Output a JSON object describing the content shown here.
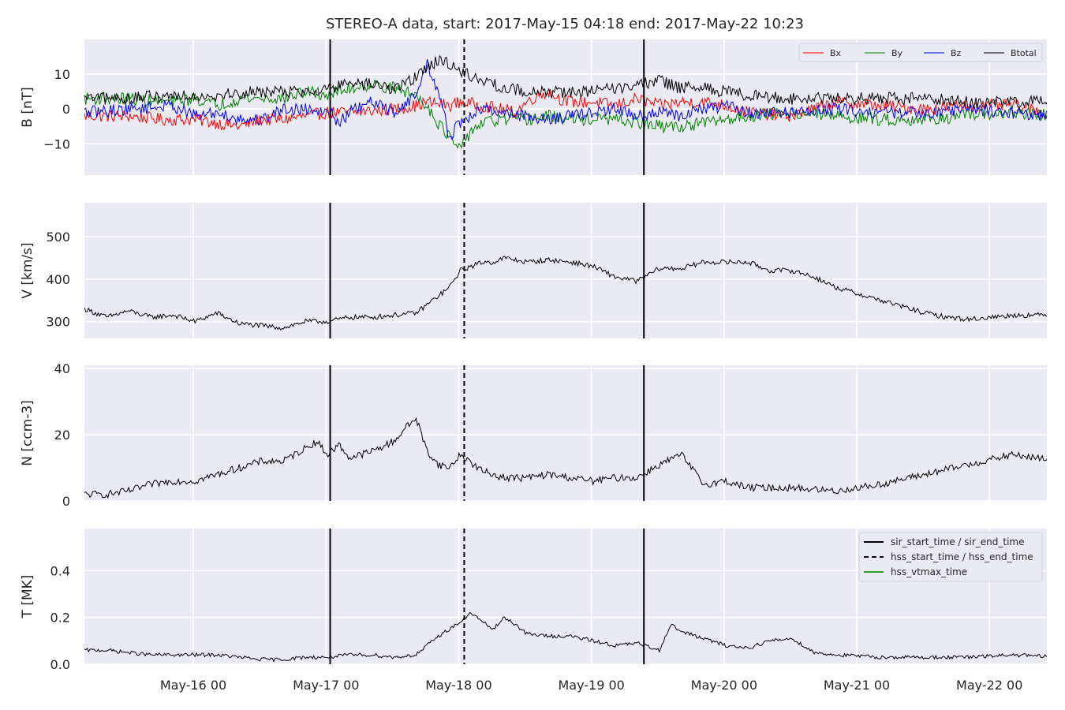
{
  "chart_data": {
    "type": "line",
    "title": "STEREO-A data, start: 2017-May-15 04:18  end: 2017-May-22 10:23",
    "x_range": [
      "2017-05-15 04:18",
      "2017-05-22 10:23"
    ],
    "x_tick_labels": [
      "May-16 00",
      "May-17 00",
      "May-18 00",
      "May-19 00",
      "May-20 00",
      "May-21 00",
      "May-22 00"
    ],
    "grid": true,
    "event_markers": [
      {
        "label": "sir_start_time / sir_end_time",
        "style": "solid",
        "color": "#000000",
        "times": [
          "2017-05-17 00:45",
          "2017-05-19 09:30"
        ]
      },
      {
        "label": "hss_start_time / hss_end_time",
        "style": "dashed",
        "color": "#000000",
        "times": [
          "2017-05-18 01:00"
        ]
      },
      {
        "label": "hss_vtmax_time",
        "style": "solid",
        "color": "#2ca02c",
        "times": []
      }
    ],
    "panels": [
      {
        "id": "B",
        "ylabel": "B [nT]",
        "ylim": [
          -19,
          20
        ],
        "yticks": [
          -10,
          0,
          10
        ],
        "ytick_labels": [
          "−10",
          "0",
          "10"
        ],
        "legend_position": "top-right",
        "series": [
          {
            "name": "Bx",
            "color": "#ff0000",
            "x": [
              0,
              8,
              14,
              20,
              24,
              28,
              32,
              36,
              40,
              44,
              48,
              56,
              60,
              62,
              66,
              68,
              72,
              78,
              80,
              82,
              84,
              86,
              88,
              92,
              96,
              100,
              104,
              108,
              112,
              116,
              120,
              128,
              136,
              144,
              152,
              160,
              168,
              176
            ],
            "y": [
              -2,
              -2,
              -3,
              -3,
              -4,
              -5,
              -3,
              -3,
              -2,
              -1,
              -1,
              0,
              1,
              2,
              1,
              2,
              1,
              -1,
              2,
              4,
              5,
              3,
              2,
              2,
              1,
              3,
              1,
              2,
              2,
              1,
              -1,
              -2,
              2,
              1,
              0,
              1,
              1,
              -2
            ]
          },
          {
            "name": "By",
            "color": "#008000",
            "x": [
              0,
              8,
              16,
              20,
              24,
              28,
              32,
              36,
              40,
              44,
              48,
              52,
              56,
              60,
              62,
              64,
              66,
              68,
              70,
              72,
              76,
              80,
              84,
              88,
              92,
              96,
              100,
              104,
              108,
              112,
              116,
              120,
              128,
              136,
              144,
              152,
              160,
              168,
              176
            ],
            "y": [
              3,
              3,
              2,
              3,
              1,
              3,
              3,
              3,
              5,
              4,
              6,
              7,
              6,
              4,
              1,
              -4,
              -8,
              -12,
              -6,
              -4,
              -3,
              -3,
              -2,
              -3,
              -3,
              -3,
              -4,
              -5,
              -5,
              -4,
              -3,
              -2,
              -1,
              -2,
              -3,
              -3,
              -2,
              -1,
              -2
            ]
          },
          {
            "name": "Bz",
            "color": "#0000ff",
            "x": [
              0,
              8,
              16,
              20,
              24,
              28,
              32,
              36,
              40,
              44,
              46,
              48,
              52,
              56,
              60,
              62,
              64,
              66,
              68,
              70,
              72,
              76,
              80,
              84,
              88,
              92,
              96,
              100,
              104,
              108,
              112,
              116,
              120,
              128,
              136,
              144,
              152,
              160,
              168,
              176
            ],
            "y": [
              -1,
              0,
              1,
              -2,
              -1,
              -3,
              -3,
              0,
              0,
              0,
              -4,
              -1,
              2,
              -1,
              4,
              13,
              5,
              -8,
              -4,
              -2,
              0,
              -1,
              -2,
              -3,
              -2,
              -1,
              0,
              -2,
              -1,
              -2,
              0,
              1,
              -1,
              -1,
              0,
              -1,
              -1,
              0,
              -1,
              -2
            ]
          },
          {
            "name": "Btotal",
            "color": "#000000",
            "x": [
              0,
              8,
              16,
              24,
              32,
              40,
              44,
              48,
              52,
              56,
              60,
              62,
              64,
              66,
              68,
              72,
              76,
              80,
              84,
              88,
              92,
              96,
              100,
              104,
              108,
              112,
              116,
              120,
              128,
              136,
              144,
              152,
              160,
              168,
              176
            ],
            "y": [
              3,
              3,
              4,
              4,
              5,
              5,
              6,
              7,
              7,
              6,
              9,
              12,
              14,
              13,
              11,
              8,
              6,
              5,
              5,
              5,
              5,
              6,
              7,
              8,
              6,
              6,
              5,
              4,
              3,
              3,
              3,
              3,
              2,
              2,
              3
            ]
          }
        ]
      },
      {
        "id": "V",
        "ylabel": "V [km/s]",
        "ylim": [
          260,
          580
        ],
        "yticks": [
          300,
          400,
          500
        ],
        "ytick_labels": [
          "300",
          "400",
          "500"
        ],
        "series": [
          {
            "name": "V",
            "color": "#000000",
            "x": [
              0,
              4,
              8,
              12,
              16,
              20,
              24,
              28,
              32,
              36,
              40,
              44,
              48,
              52,
              56,
              60,
              62,
              64,
              66,
              68,
              70,
              72,
              74,
              76,
              80,
              84,
              88,
              92,
              96,
              100,
              104,
              108,
              112,
              116,
              120,
              124,
              128,
              132,
              136,
              140,
              144,
              148,
              152,
              156,
              160,
              164,
              168,
              172,
              176
            ],
            "y": [
              330,
              310,
              325,
              310,
              315,
              300,
              320,
              295,
              290,
              285,
              300,
              300,
              310,
              310,
              315,
              320,
              340,
              360,
              380,
              420,
              430,
              440,
              440,
              450,
              440,
              445,
              440,
              430,
              405,
              395,
              425,
              425,
              440,
              440,
              440,
              420,
              420,
              405,
              380,
              365,
              350,
              335,
              320,
              310,
              305,
              310,
              315,
              315,
              315
            ]
          }
        ]
      },
      {
        "id": "N",
        "ylabel": "N [ccm-3]",
        "ylim": [
          0,
          41
        ],
        "yticks": [
          0,
          20,
          40
        ],
        "ytick_labels": [
          "0",
          "20",
          "40"
        ],
        "series": [
          {
            "name": "N",
            "color": "#000000",
            "x": [
              0,
              4,
              8,
              12,
              16,
              20,
              24,
              28,
              32,
              36,
              40,
              42,
              44,
              46,
              48,
              52,
              56,
              58,
              60,
              62,
              64,
              66,
              68,
              72,
              76,
              80,
              84,
              88,
              92,
              96,
              100,
              104,
              108,
              112,
              116,
              120,
              128,
              136,
              144,
              152,
              160,
              168,
              176
            ],
            "y": [
              2,
              2,
              3,
              5,
              6,
              6,
              8,
              10,
              12,
              12,
              16,
              18,
              14,
              17,
              13,
              15,
              18,
              22,
              25,
              15,
              11,
              10,
              14,
              9,
              7,
              7,
              8,
              7,
              6,
              7,
              7,
              11,
              14,
              5,
              6,
              4,
              4,
              3,
              5,
              8,
              11,
              14,
              12
            ]
          }
        ]
      },
      {
        "id": "T",
        "ylabel": "T [MK]",
        "ylim": [
          0,
          0.58
        ],
        "yticks": [
          0,
          0.2,
          0.4
        ],
        "ytick_labels": [
          "0.0",
          "0.2",
          "0.4"
        ],
        "legend_position": "top-right",
        "series": [
          {
            "name": "T",
            "color": "#000000",
            "x": [
              0,
              4,
              8,
              12,
              16,
              20,
              24,
              28,
              32,
              36,
              40,
              44,
              48,
              52,
              56,
              60,
              62,
              64,
              66,
              68,
              70,
              72,
              74,
              76,
              78,
              80,
              84,
              88,
              92,
              96,
              100,
              104,
              106,
              108,
              112,
              116,
              120,
              124,
              128,
              132,
              136,
              144,
              152,
              160,
              168,
              176
            ],
            "y": [
              0.06,
              0.06,
              0.05,
              0.04,
              0.04,
              0.04,
              0.04,
              0.03,
              0.02,
              0.02,
              0.03,
              0.03,
              0.04,
              0.04,
              0.03,
              0.04,
              0.08,
              0.12,
              0.15,
              0.18,
              0.22,
              0.18,
              0.15,
              0.2,
              0.17,
              0.13,
              0.12,
              0.12,
              0.1,
              0.08,
              0.09,
              0.06,
              0.17,
              0.14,
              0.11,
              0.08,
              0.07,
              0.1,
              0.11,
              0.05,
              0.04,
              0.03,
              0.03,
              0.03,
              0.04,
              0.03
            ]
          }
        ]
      }
    ]
  }
}
